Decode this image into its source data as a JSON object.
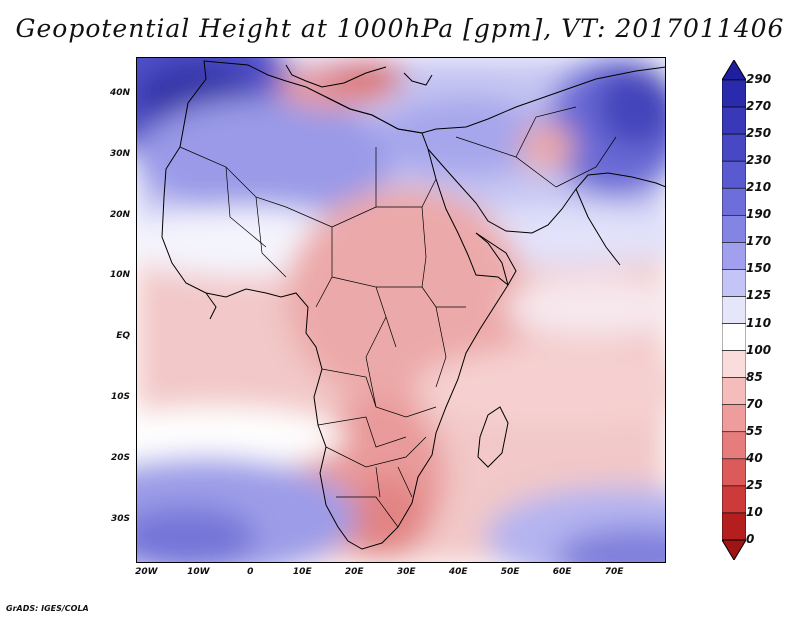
{
  "title": "Geopotential Height at 1000hPa [gpm], VT: 2017011406",
  "credit": "GrADS: IGES/COLA",
  "map": {
    "region": "Africa and Middle East",
    "lon_range": [
      -22,
      80
    ],
    "lat_range": [
      -37,
      46
    ],
    "lat_ticks": [
      "40N",
      "30N",
      "20N",
      "10N",
      "EQ",
      "10S",
      "20S",
      "30S"
    ],
    "lat_values": [
      40,
      30,
      20,
      10,
      0,
      -10,
      -20,
      -30
    ],
    "lon_ticks": [
      "20W",
      "10W",
      "0",
      "10E",
      "20E",
      "30E",
      "40E",
      "50E",
      "60E",
      "70E"
    ],
    "lon_values": [
      -20,
      -10,
      0,
      10,
      20,
      30,
      40,
      50,
      60,
      70
    ]
  },
  "colorbar": {
    "levels": [
      "290",
      "270",
      "250",
      "230",
      "210",
      "190",
      "170",
      "150",
      "125",
      "110",
      "100",
      "85",
      "70",
      "55",
      "40",
      "25",
      "10",
      "0"
    ],
    "colors": [
      "#1e1ea0",
      "#2a2aad",
      "#3838b8",
      "#4848c4",
      "#5a5ad0",
      "#6e6edb",
      "#8484e4",
      "#a0a0ee",
      "#c4c4f6",
      "#e6e6fb",
      "#ffffff",
      "#fbdcdc",
      "#f5bcbc",
      "#ee9c9c",
      "#e67c7c",
      "#dc5a5a",
      "#cc3a3a",
      "#b41e1e",
      "#a01414"
    ]
  }
}
